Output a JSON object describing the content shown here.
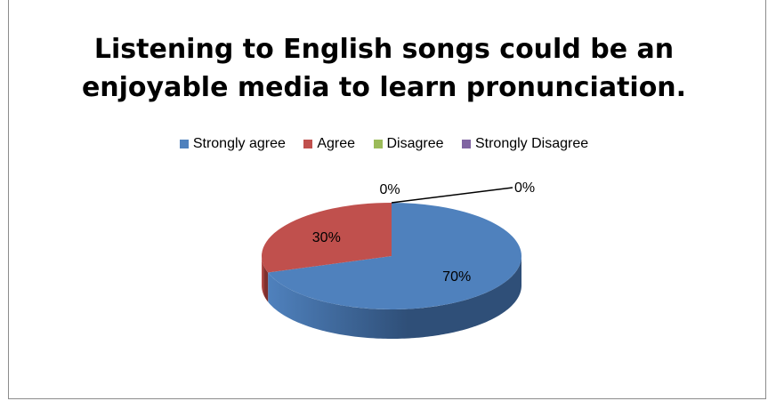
{
  "chart_data": {
    "type": "pie",
    "title": "Listening to English songs could be an enjoyable media to learn pronunciation.",
    "title_lines": [
      "Listening to English songs could be an",
      "enjoyable media to learn pronunciation."
    ],
    "legend_position": "top",
    "three_d": true,
    "slices": [
      {
        "name": "Strongly agree",
        "value": 70,
        "label": "70%",
        "color": "#4f81bd",
        "dark": "#2f4f78"
      },
      {
        "name": "Agree",
        "value": 30,
        "label": "30%",
        "color": "#c0504d",
        "dark": "#7e2f2d"
      },
      {
        "name": "Disagree",
        "value": 0,
        "label": "0%",
        "color": "#9bbb59",
        "dark": "#6a8434"
      },
      {
        "name": "Strongly Disagree",
        "value": 0,
        "label": "0%",
        "color": "#8064a2",
        "dark": "#54406e"
      }
    ]
  }
}
